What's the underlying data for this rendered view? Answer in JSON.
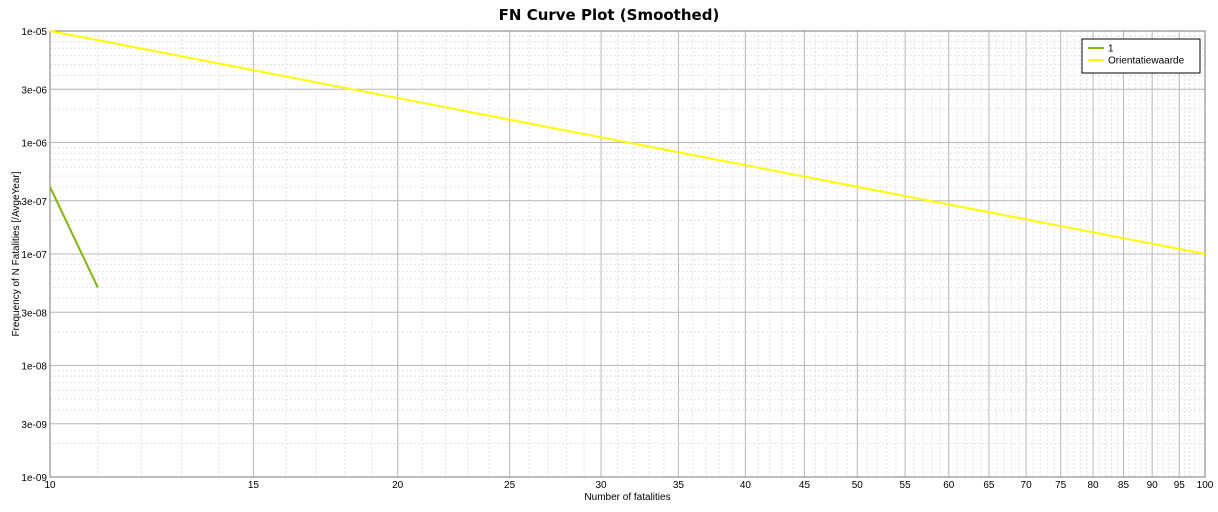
{
  "chart_data": {
    "type": "line",
    "title": "FN Curve Plot (Smoothed)",
    "xlabel": "Number of fatalities",
    "ylabel": "Frequency of N Fatalities [/AvgeYear]",
    "x_scale": "log",
    "y_scale": "log",
    "xlim": [
      10,
      100
    ],
    "ylim": [
      1e-09,
      1e-05
    ],
    "x_tick_values": [
      10,
      15,
      20,
      25,
      30,
      35,
      40,
      45,
      50,
      55,
      60,
      65,
      70,
      75,
      80,
      85,
      90,
      95,
      100
    ],
    "x_tick_labels": [
      "10",
      "15",
      "20",
      "25",
      "30",
      "35",
      "40",
      "45",
      "50",
      "55",
      "60",
      "65",
      "70",
      "75",
      "80",
      "85",
      "90",
      "95",
      "100"
    ],
    "y_tick_values": [
      1e-09,
      3e-09,
      1e-08,
      3e-08,
      1e-07,
      3e-07,
      1e-06,
      3e-06,
      1e-05
    ],
    "y_tick_labels": [
      "1e-09",
      "3e-09",
      "1e-08",
      "3e-08",
      "1e-07",
      "3e-07",
      "1e-06",
      "3e-06",
      "1e-05"
    ],
    "grid": true,
    "legend_position": "top-right",
    "series": [
      {
        "name": "1",
        "color": "#7fba00",
        "x": [
          10,
          11
        ],
        "y": [
          4e-07,
          5e-08
        ]
      },
      {
        "name": "Orientatiewaarde",
        "color": "#ffff00",
        "x": [
          10,
          100
        ],
        "y": [
          1e-05,
          1e-07
        ]
      }
    ]
  }
}
